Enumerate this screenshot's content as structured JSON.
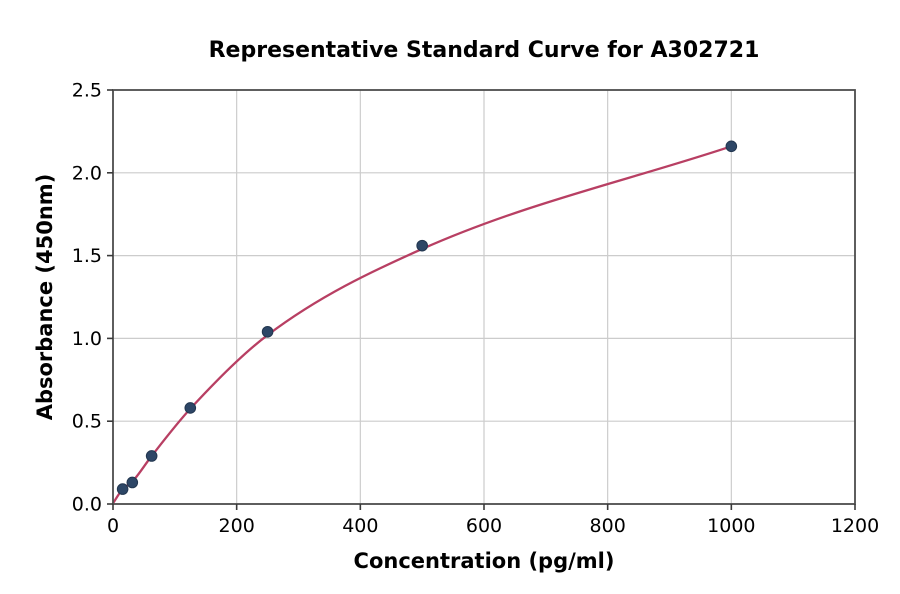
{
  "chart_data": {
    "type": "scatter",
    "title": "Representative Standard Curve for A302721",
    "xlabel": "Concentration (pg/ml)",
    "ylabel": "Absorbance (450nm)",
    "xlim": [
      0,
      1200
    ],
    "ylim": [
      0,
      2.5
    ],
    "grid": true,
    "legend": false,
    "x_ticks": {
      "values": [
        0,
        200,
        400,
        600,
        800,
        1000,
        1200
      ],
      "labels": [
        "0",
        "200",
        "400",
        "600",
        "800",
        "1000",
        "1200"
      ]
    },
    "y_ticks": {
      "values": [
        0,
        0.5,
        1.0,
        1.5,
        2.0,
        2.5
      ],
      "labels": [
        "0.0",
        "0.5",
        "1.0",
        "1.5",
        "2.0",
        "2.5"
      ]
    },
    "points": [
      {
        "x": 15.6,
        "y": 0.09
      },
      {
        "x": 31.2,
        "y": 0.13
      },
      {
        "x": 62.5,
        "y": 0.29
      },
      {
        "x": 125,
        "y": 0.58
      },
      {
        "x": 250,
        "y": 1.04
      },
      {
        "x": 500,
        "y": 1.56
      },
      {
        "x": 1000,
        "y": 2.16
      }
    ],
    "fit_curve": {
      "description": "standard-curve fit drawn from x=0 to x=1000",
      "anchors": [
        [
          0,
          0.005
        ],
        [
          15.6,
          0.09
        ],
        [
          31.2,
          0.135
        ],
        [
          62.5,
          0.29
        ],
        [
          125,
          0.575
        ],
        [
          250,
          1.02
        ],
        [
          500,
          1.54
        ],
        [
          1000,
          2.16
        ]
      ]
    },
    "colors": {
      "point_fill": "#2d4666",
      "point_edge": "#22364f",
      "curve": "#b83f63",
      "grid": "#cccccc",
      "spine": "#4d4d4d",
      "tick": "#3a3a3a",
      "background": "#ffffff"
    }
  }
}
